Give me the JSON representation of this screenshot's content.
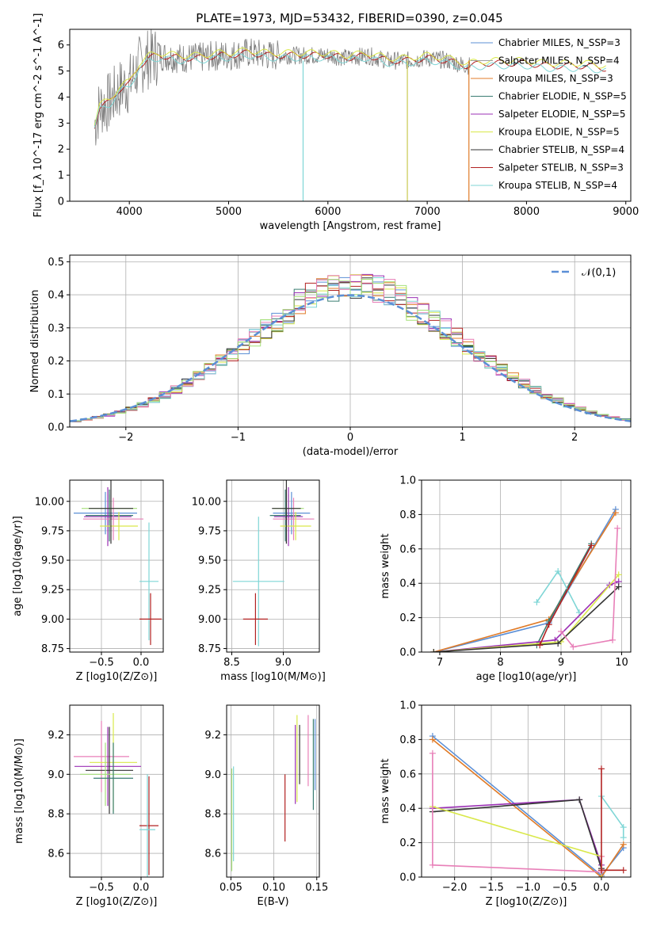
{
  "title": "PLATE=1973, MJD=53432, FIBERID=0390, z=0.045",
  "legend_labels": [
    "Chabrier MILES, N_SSP=3",
    "Salpeter MILES, N_SSP=4",
    "Kroupa MILES, N_SSP=3",
    "Chabrier ELODIE, N_SSP=5",
    "Salpeter ELODIE, N_SSP=5",
    "Kroupa ELODIE, N_SSP=5",
    "Chabrier STELIB, N_SSP=4",
    "Salpeter STELIB, N_SSP=3",
    "Kroupa STELIB, N_SSP=4"
  ],
  "colors": [
    "#5b8fd6",
    "#a0a0a0",
    "#e07b28",
    "#3a7d72",
    "#9b30b5",
    "#d9e84a",
    "#333333",
    "#b22222",
    "#7fd6d6"
  ],
  "hist_colors": [
    "#5b8fd6",
    "#e07b28",
    "#3a7d72",
    "#9b30b5",
    "#d9e84a",
    "#333333",
    "#b22222",
    "#7fd6d6",
    "#e87fb8",
    "#a6e07a"
  ],
  "chart_data": [
    {
      "type": "line",
      "name": "spectrum",
      "xlabel": "wavelength [Angstrom, rest frame]",
      "ylabel": "Flux [f_λ 10^-17 erg cm^-2 s^-1 A^-1]",
      "xlim": [
        3400,
        9050
      ],
      "ylim": [
        0,
        6.6
      ],
      "xticks": [
        4000,
        5000,
        6000,
        7000,
        8000,
        9000
      ],
      "yticks": [
        0,
        1,
        2,
        3,
        4,
        5,
        6
      ],
      "x": [
        3650,
        3700,
        3800,
        3900,
        4000,
        4100,
        4200,
        4300,
        4500,
        4700,
        4900,
        5000,
        5200,
        5400,
        5600,
        5800,
        6000,
        6200,
        6400,
        6600,
        6800,
        7000,
        7200,
        7400,
        7600,
        7800,
        8000,
        8200,
        8400,
        8600,
        8800
      ],
      "series": [
        {
          "values": [
            2.9,
            3.6,
            3.8,
            4.3,
            4.5,
            5.2,
            5.5,
            5.6,
            5.5,
            5.5,
            5.6,
            5.6,
            5.7,
            5.6,
            5.6,
            5.6,
            5.6,
            5.5,
            5.6,
            5.4,
            5.4,
            5.5,
            5.4,
            5.2,
            5.3,
            5.3,
            5.3,
            5.2,
            5.2,
            5.2,
            5.1
          ]
        },
        {
          "values": [
            3.0,
            3.7,
            3.9,
            4.4,
            4.6,
            5.3,
            5.6,
            5.7,
            5.6,
            5.6,
            5.7,
            5.7,
            5.8,
            5.7,
            5.7,
            5.7,
            5.7,
            5.6,
            5.7,
            5.5,
            5.5,
            5.6,
            5.5,
            5.3,
            5.4,
            5.4,
            5.4,
            5.3,
            5.3,
            5.3,
            5.2
          ]
        },
        {
          "values": [
            2.8,
            3.5,
            3.7,
            4.2,
            4.4,
            5.1,
            5.4,
            5.5,
            5.4,
            5.4,
            5.5,
            5.5,
            5.6,
            5.5,
            5.5,
            5.5,
            5.5,
            5.4,
            5.5,
            5.3,
            5.3,
            5.4,
            5.3,
            5.1,
            5.2,
            5.2,
            5.2,
            5.1,
            5.1,
            5.1,
            5.0
          ]
        }
      ]
    },
    {
      "type": "bar",
      "name": "residual histogram",
      "xlabel": "(data-model)/error",
      "ylabel": "Normed distribution",
      "xlim": [
        -2.5,
        2.5
      ],
      "ylim": [
        0,
        0.52
      ],
      "xticks": [
        -2,
        -1,
        0,
        1,
        2
      ],
      "yticks": [
        0.0,
        0.1,
        0.2,
        0.3,
        0.4,
        0.5
      ],
      "legend": "𝒩(0,1)",
      "gaussian": {
        "mean": 0,
        "sigma": 1
      }
    },
    {
      "type": "scatter",
      "name": "age vs Z",
      "xlabel": "Z [log10(Z/Z⊙)]",
      "ylabel": "age [log10(age/yr)]",
      "xlim": [
        -0.9,
        0.28
      ],
      "ylim": [
        8.72,
        10.18
      ],
      "xticks": [
        -0.5,
        0.0
      ],
      "yticks": [
        8.75,
        9.0,
        9.25,
        9.5,
        9.75,
        10.0
      ],
      "points": [
        {
          "x": -0.4,
          "y": 9.94,
          "xerr": 0.35,
          "yerr": 0.12,
          "c": 9
        },
        {
          "x": -0.45,
          "y": 9.9,
          "xerr": 0.4,
          "yerr": 0.18,
          "c": 0
        },
        {
          "x": -0.4,
          "y": 9.88,
          "xerr": 0.3,
          "yerr": 0.22,
          "c": 2
        },
        {
          "x": -0.42,
          "y": 9.87,
          "xerr": 0.3,
          "yerr": 0.25,
          "c": 3
        },
        {
          "x": -0.35,
          "y": 9.85,
          "xerr": 0.38,
          "yerr": 0.18,
          "c": 8
        },
        {
          "x": -0.28,
          "y": 9.79,
          "xerr": 0.24,
          "yerr": 0.12,
          "c": 4
        },
        {
          "x": -0.38,
          "y": 9.94,
          "xerr": 0.28,
          "yerr": 0.3,
          "c": 5
        },
        {
          "x": 0.1,
          "y": 9.32,
          "xerr": 0.12,
          "yerr": 0.5,
          "c": 7
        },
        {
          "x": 0.12,
          "y": 9.0,
          "xerr": 0.14,
          "yerr": 0.22,
          "c": 6
        }
      ]
    },
    {
      "type": "scatter",
      "name": "age vs mass",
      "xlabel": "mass [log10(M/M⊙)]",
      "ylabel": "",
      "xlim": [
        8.45,
        9.35
      ],
      "ylim": [
        8.72,
        10.18
      ],
      "xticks": [
        8.5,
        9.0
      ],
      "yticks": [
        8.75,
        9.0,
        9.25,
        9.5,
        9.75,
        10.0
      ],
      "points": [
        {
          "x": 9.05,
          "y": 9.94,
          "xerr": 0.15,
          "yerr": 0.12,
          "c": 9
        },
        {
          "x": 9.08,
          "y": 9.9,
          "xerr": 0.18,
          "yerr": 0.18,
          "c": 0
        },
        {
          "x": 9.02,
          "y": 9.88,
          "xerr": 0.15,
          "yerr": 0.22,
          "c": 2
        },
        {
          "x": 9.05,
          "y": 9.87,
          "xerr": 0.14,
          "yerr": 0.25,
          "c": 3
        },
        {
          "x": 9.1,
          "y": 9.85,
          "xerr": 0.2,
          "yerr": 0.18,
          "c": 8
        },
        {
          "x": 9.12,
          "y": 9.79,
          "xerr": 0.15,
          "yerr": 0.12,
          "c": 4
        },
        {
          "x": 9.03,
          "y": 9.94,
          "xerr": 0.14,
          "yerr": 0.3,
          "c": 5
        },
        {
          "x": 8.76,
          "y": 9.32,
          "xerr": 0.25,
          "yerr": 0.55,
          "c": 7
        },
        {
          "x": 8.73,
          "y": 9.0,
          "xerr": 0.12,
          "yerr": 0.22,
          "c": 6
        }
      ]
    },
    {
      "type": "line",
      "name": "mass weight vs age",
      "xlabel": "age [log10(age/yr)]",
      "ylabel": "mass weight",
      "xlim": [
        6.7,
        10.15
      ],
      "ylim": [
        0,
        1.0
      ],
      "xticks": [
        7,
        8,
        9,
        10
      ],
      "yticks": [
        0.0,
        0.2,
        0.4,
        0.6,
        0.8,
        1.0
      ],
      "series": [
        {
          "c": 0,
          "x": [
            6.9,
            8.8,
            9.9
          ],
          "y": [
            0.0,
            0.17,
            0.83
          ]
        },
        {
          "c": 1,
          "x": [
            6.9,
            8.8,
            9.9
          ],
          "y": [
            0.0,
            0.19,
            0.81
          ]
        },
        {
          "c": 2,
          "x": [
            8.6,
            8.8,
            9.5
          ],
          "y": [
            0.04,
            0.18,
            0.63
          ]
        },
        {
          "c": 7,
          "x": [
            8.6,
            8.95,
            9.3
          ],
          "y": [
            0.29,
            0.47,
            0.23
          ]
        },
        {
          "c": 3,
          "x": [
            6.9,
            8.9,
            9.8,
            9.95
          ],
          "y": [
            0.0,
            0.07,
            0.39,
            0.41
          ]
        },
        {
          "c": 4,
          "x": [
            6.9,
            9.0,
            9.95
          ],
          "y": [
            0.0,
            0.06,
            0.45
          ]
        },
        {
          "c": 5,
          "x": [
            6.9,
            8.95,
            9.95
          ],
          "y": [
            0.0,
            0.05,
            0.38
          ]
        },
        {
          "c": 8,
          "x": [
            9.0,
            9.2,
            9.85,
            9.93
          ],
          "y": [
            0.12,
            0.03,
            0.07,
            0.72
          ]
        },
        {
          "c": 6,
          "x": [
            8.65,
            8.8,
            9.5
          ],
          "y": [
            0.04,
            0.16,
            0.62
          ]
        }
      ]
    },
    {
      "type": "scatter",
      "name": "mass vs Z",
      "xlabel": "Z [log10(Z/Z⊙)]",
      "ylabel": "mass [log10(M/M⊙)]",
      "xlim": [
        -0.9,
        0.28
      ],
      "ylim": [
        8.48,
        9.35
      ],
      "xticks": [
        -0.5,
        0.0
      ],
      "yticks": [
        8.6,
        8.8,
        9.0,
        9.2
      ],
      "points": [
        {
          "x": -0.5,
          "y": 9.09,
          "xerr": 0.35,
          "yerr": 0.18,
          "c": 8
        },
        {
          "x": -0.35,
          "y": 9.06,
          "xerr": 0.3,
          "yerr": 0.25,
          "c": 4
        },
        {
          "x": -0.42,
          "y": 9.04,
          "xerr": 0.42,
          "yerr": 0.2,
          "c": 3
        },
        {
          "x": -0.4,
          "y": 9.02,
          "xerr": 0.3,
          "yerr": 0.22,
          "c": 5
        },
        {
          "x": -0.45,
          "y": 9.0,
          "xerr": 0.32,
          "yerr": 0.16,
          "c": 9
        },
        {
          "x": -0.35,
          "y": 8.98,
          "xerr": 0.25,
          "yerr": 0.18,
          "c": 2
        },
        {
          "x": 0.1,
          "y": 8.74,
          "xerr": 0.12,
          "yerr": 0.25,
          "c": 6
        },
        {
          "x": 0.08,
          "y": 8.72,
          "xerr": 0.1,
          "yerr": 0.28,
          "c": 7
        }
      ]
    },
    {
      "type": "scatter",
      "name": "mass vs E(B-V)",
      "xlabel": "E(B-V)",
      "ylabel": "",
      "xlim": [
        0.045,
        0.153
      ],
      "ylim": [
        8.48,
        9.35
      ],
      "xticks": [
        0.05,
        0.1,
        0.15
      ],
      "yticks": [
        8.6,
        8.8,
        9.0,
        9.2
      ],
      "points": [
        {
          "x": 0.051,
          "y": 8.77,
          "xerr": 0,
          "yerr": 0.26,
          "c": 9
        },
        {
          "x": 0.053,
          "y": 8.8,
          "xerr": 0,
          "yerr": 0.24,
          "c": 7
        },
        {
          "x": 0.113,
          "y": 8.83,
          "xerr": 0,
          "yerr": 0.17,
          "c": 6
        },
        {
          "x": 0.125,
          "y": 9.05,
          "xerr": 0,
          "yerr": 0.2,
          "c": 3
        },
        {
          "x": 0.127,
          "y": 9.08,
          "xerr": 0,
          "yerr": 0.22,
          "c": 4
        },
        {
          "x": 0.13,
          "y": 9.1,
          "xerr": 0,
          "yerr": 0.15,
          "c": 5
        },
        {
          "x": 0.14,
          "y": 9.12,
          "xerr": 0,
          "yerr": 0.18,
          "c": 8
        },
        {
          "x": 0.146,
          "y": 9.05,
          "xerr": 0,
          "yerr": 0.23,
          "c": 2
        },
        {
          "x": 0.148,
          "y": 9.1,
          "xerr": 0,
          "yerr": 0.18,
          "c": 0
        }
      ]
    },
    {
      "type": "line",
      "name": "mass weight vs Z",
      "xlabel": "Z [log10(Z/Z⊙)]",
      "ylabel": "mass weight",
      "xlim": [
        -2.45,
        0.4
      ],
      "ylim": [
        0,
        1.0
      ],
      "xticks": [
        -2.0,
        -1.5,
        -1.0,
        -0.5,
        0.0
      ],
      "yticks": [
        0.0,
        0.2,
        0.4,
        0.6,
        0.8,
        1.0
      ],
      "series": [
        {
          "c": 0,
          "x": [
            -2.3,
            0.0,
            0.3
          ],
          "y": [
            0.82,
            0.01,
            0.17
          ]
        },
        {
          "c": 1,
          "x": [
            -2.3,
            0.0,
            0.3
          ],
          "y": [
            0.8,
            0.0,
            0.19
          ]
        },
        {
          "c": 3,
          "x": [
            -2.3,
            -0.3,
            0.0,
            0.0
          ],
          "y": [
            0.4,
            0.45,
            0.07,
            0.0
          ]
        },
        {
          "c": 5,
          "x": [
            -2.3,
            -0.3,
            0.0,
            0.0
          ],
          "y": [
            0.38,
            0.45,
            0.05,
            0.0
          ]
        },
        {
          "c": 4,
          "x": [
            -2.3,
            0.0,
            0.0
          ],
          "y": [
            0.41,
            0.12,
            0.0
          ]
        },
        {
          "c": 8,
          "x": [
            -2.3,
            -2.3,
            0.0,
            0.0
          ],
          "y": [
            0.72,
            0.07,
            0.03,
            0.12
          ]
        },
        {
          "c": 7,
          "x": [
            0.0,
            0.3,
            0.3
          ],
          "y": [
            0.47,
            0.29,
            0.23
          ]
        },
        {
          "c": 6,
          "x": [
            0.0,
            0.0,
            0.3
          ],
          "y": [
            0.63,
            0.04,
            0.04
          ]
        }
      ]
    }
  ]
}
